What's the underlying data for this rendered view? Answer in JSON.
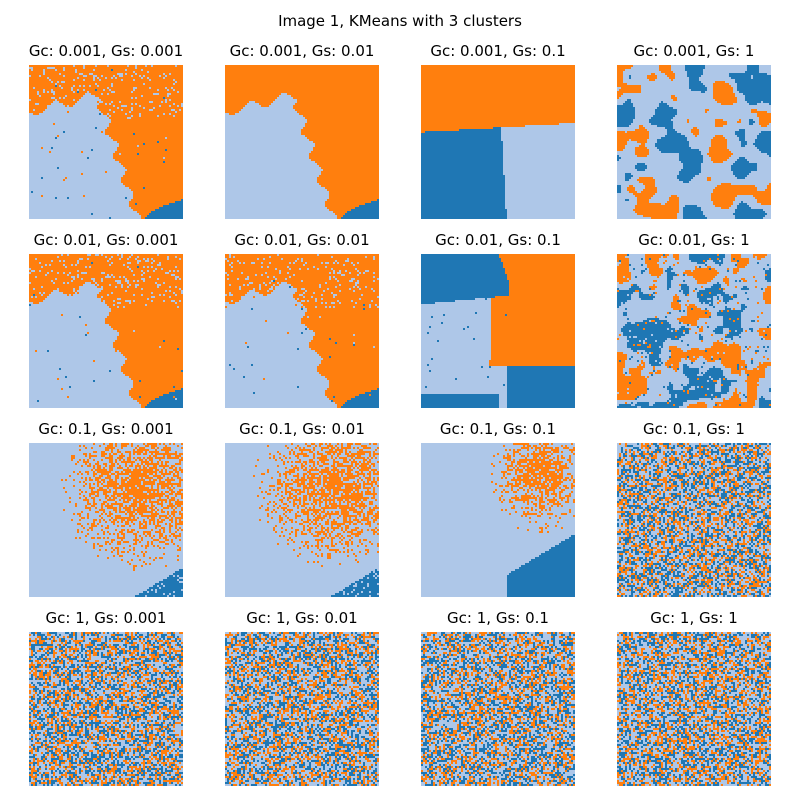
{
  "figure": {
    "title": "Image 1, KMeans with 3 clusters"
  },
  "colors": {
    "cluster_dark_blue": "#1f77b4",
    "cluster_light_blue": "#aec7e8",
    "cluster_orange": "#ff7f0e"
  },
  "panels": [
    {
      "title": "Gc: 0.001, Gs: 0.001",
      "style": "coastline",
      "noise_level": 0.06
    },
    {
      "title": "Gc: 0.001, Gs: 0.01",
      "style": "coastline-smooth",
      "noise_level": 0.0
    },
    {
      "title": "Gc: 0.001, Gs: 0.1",
      "style": "three-region",
      "noise_level": 0.0
    },
    {
      "title": "Gc: 0.001, Gs: 1",
      "style": "blobs-large",
      "noise_level": 0.0
    },
    {
      "title": "Gc: 0.01, Gs: 0.001",
      "style": "coastline",
      "noise_level": 0.06
    },
    {
      "title": "Gc: 0.01, Gs: 0.01",
      "style": "coastline",
      "noise_level": 0.05
    },
    {
      "title": "Gc: 0.01, Gs: 0.1",
      "style": "three-region-swapped",
      "noise_level": 0.01
    },
    {
      "title": "Gc: 0.01, Gs: 1",
      "style": "blobs-medium",
      "noise_level": 0.08
    },
    {
      "title": "Gc: 0.1, Gs: 0.001",
      "style": "coastline-sparse",
      "noise_level": 0.35
    },
    {
      "title": "Gc: 0.1, Gs: 0.01",
      "style": "coastline-sparse",
      "noise_level": 0.35
    },
    {
      "title": "Gc: 0.1, Gs: 0.1",
      "style": "sparse-right",
      "noise_level": 0.3
    },
    {
      "title": "Gc: 0.1, Gs: 1",
      "style": "noise",
      "noise_level": 1.0
    },
    {
      "title": "Gc: 1, Gs: 0.001",
      "style": "noise",
      "noise_level": 1.0
    },
    {
      "title": "Gc: 1, Gs: 0.01",
      "style": "noise",
      "noise_level": 1.0
    },
    {
      "title": "Gc: 1, Gs: 0.1",
      "style": "noise",
      "noise_level": 1.0
    },
    {
      "title": "Gc: 1, Gs: 1",
      "style": "noise",
      "noise_level": 1.0
    }
  ]
}
